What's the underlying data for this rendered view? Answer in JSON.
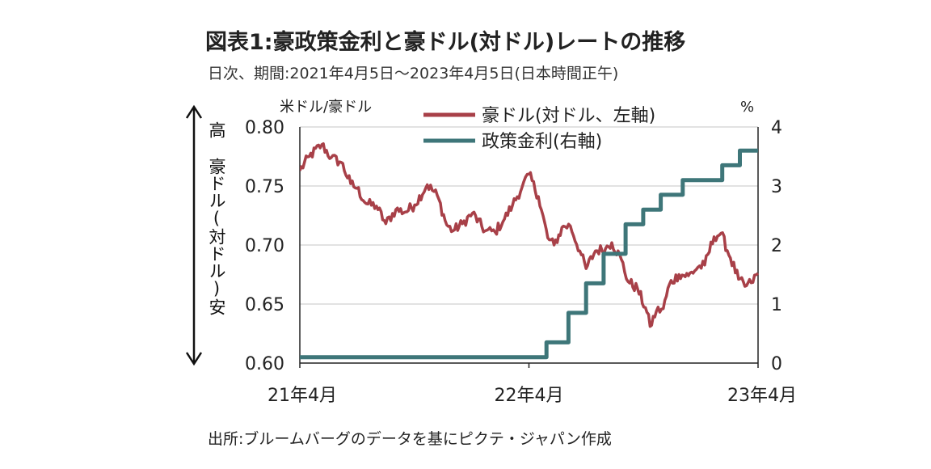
{
  "header": {
    "title": "図表1:豪政策金利と豪ドル(対ドル)レートの推移",
    "subtitle": "日次、期間:2021年4月5日～2023年4月5日(日本時間正午)"
  },
  "footer": {
    "source": "出所:ブルームバーグのデータを基にピクテ・ジャパン作成"
  },
  "chart_data": {
    "type": "line",
    "left_axis": {
      "unit_label": "米ドル/豪ドル",
      "range": [
        0.6,
        0.8
      ],
      "ticks": [
        "0.60",
        "0.65",
        "0.70",
        "0.75",
        "0.80"
      ],
      "side_label": "高 豪ドル(対ドル)安"
    },
    "right_axis": {
      "unit_label": "%",
      "range": [
        0,
        4
      ],
      "ticks": [
        "0",
        "1",
        "2",
        "3",
        "4"
      ]
    },
    "x_axis": {
      "range": [
        "2021-04-05",
        "2023-04-05"
      ],
      "tick_labels": [
        "21年4月",
        "22年4月",
        "23年4月"
      ]
    },
    "grid": "horizontal",
    "legend_position": "top-center",
    "colors": {
      "aud": "#a84048",
      "rate": "#3e7679"
    },
    "series": [
      {
        "name": "豪ドル(対ドル、左軸)",
        "axis": "left",
        "color": "#a84048",
        "x": [
          "2021-04-05",
          "2021-04-20",
          "2021-05-10",
          "2021-05-25",
          "2021-06-10",
          "2021-06-25",
          "2021-07-05",
          "2021-07-20",
          "2021-08-05",
          "2021-08-20",
          "2021-09-05",
          "2021-09-20",
          "2021-10-05",
          "2021-10-25",
          "2021-11-10",
          "2021-11-25",
          "2021-12-05",
          "2021-12-20",
          "2022-01-05",
          "2022-01-25",
          "2022-02-10",
          "2022-02-25",
          "2022-03-10",
          "2022-03-25",
          "2022-04-05",
          "2022-04-20",
          "2022-05-05",
          "2022-05-15",
          "2022-05-30",
          "2022-06-10",
          "2022-06-25",
          "2022-07-05",
          "2022-07-20",
          "2022-08-05",
          "2022-08-15",
          "2022-08-30",
          "2022-09-10",
          "2022-09-25",
          "2022-10-10",
          "2022-10-15",
          "2022-10-25",
          "2022-11-05",
          "2022-11-15",
          "2022-11-30",
          "2022-12-15",
          "2022-12-30",
          "2023-01-10",
          "2023-01-25",
          "2023-02-05",
          "2023-02-20",
          "2023-03-05",
          "2023-03-15",
          "2023-03-25",
          "2023-04-05"
        ],
        "values": [
          0.763,
          0.775,
          0.785,
          0.774,
          0.77,
          0.752,
          0.748,
          0.735,
          0.733,
          0.718,
          0.73,
          0.728,
          0.734,
          0.751,
          0.742,
          0.717,
          0.712,
          0.718,
          0.727,
          0.712,
          0.711,
          0.722,
          0.734,
          0.749,
          0.76,
          0.741,
          0.706,
          0.7,
          0.716,
          0.716,
          0.695,
          0.68,
          0.695,
          0.697,
          0.702,
          0.688,
          0.669,
          0.663,
          0.643,
          0.631,
          0.644,
          0.646,
          0.667,
          0.675,
          0.674,
          0.681,
          0.683,
          0.707,
          0.71,
          0.689,
          0.671,
          0.665,
          0.668,
          0.676
        ]
      },
      {
        "name": "政策金利(右軸)",
        "axis": "right",
        "color": "#3e7679",
        "step": true,
        "x": [
          "2021-04-05",
          "2022-05-03",
          "2022-06-07",
          "2022-07-05",
          "2022-08-02",
          "2022-09-06",
          "2022-10-04",
          "2022-11-01",
          "2022-12-06",
          "2023-02-07",
          "2023-03-07",
          "2023-04-05"
        ],
        "values": [
          0.1,
          0.35,
          0.85,
          1.35,
          1.85,
          2.35,
          2.6,
          2.85,
          3.1,
          3.35,
          3.6,
          3.6
        ]
      }
    ]
  }
}
